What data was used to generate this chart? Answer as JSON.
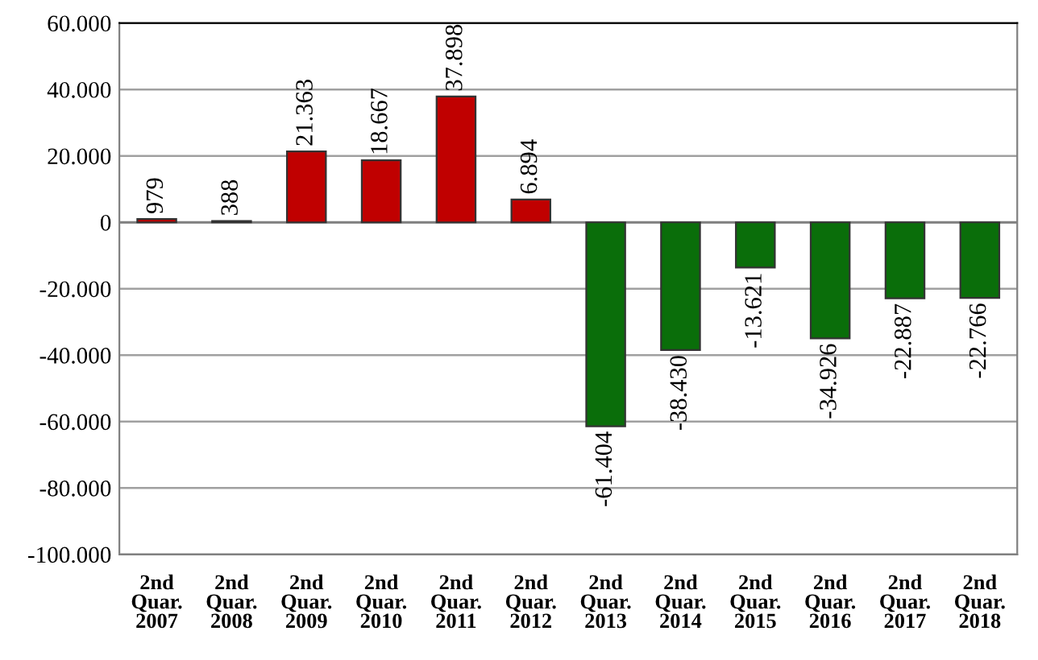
{
  "chart_data": {
    "type": "bar",
    "categories": [
      "2nd\nQuar.\n2007",
      "2nd\nQuar.\n2008",
      "2nd\nQuar.\n2009",
      "2nd\nQuar.\n2010",
      "2nd\nQuar.\n2011",
      "2nd\nQuar.\n2012",
      "2nd\nQuar.\n2013",
      "2nd\nQuar.\n2014",
      "2nd\nQuar.\n2015",
      "2nd\nQuar.\n2016",
      "2nd\nQuar.\n2017",
      "2nd\nQuar.\n2018"
    ],
    "values": [
      979,
      388,
      21363,
      18667,
      37898,
      6894,
      -61404,
      -38430,
      -13621,
      -34926,
      -22887,
      -22766
    ],
    "value_labels": [
      "979",
      "388",
      "21.363",
      "18.667",
      "37.898",
      "6.894",
      "-61.404",
      "-38.430",
      "-13.621",
      "-34.926",
      "-22.887",
      "-22.766"
    ],
    "colors": [
      "#c00000",
      "#c00000",
      "#c00000",
      "#c00000",
      "#c00000",
      "#c00000",
      "#0a6e0a",
      "#0a6e0a",
      "#0a6e0a",
      "#0a6e0a",
      "#0a6e0a",
      "#0a6e0a"
    ],
    "ylim": [
      -100000,
      60000
    ],
    "yticks": [
      {
        "value": -100000,
        "label": "-100.000"
      },
      {
        "value": -80000,
        "label": "-80.000"
      },
      {
        "value": -60000,
        "label": "-60.000"
      },
      {
        "value": -40000,
        "label": "-40.000"
      },
      {
        "value": -20000,
        "label": "-20.000"
      },
      0,
      {
        "value": 20000,
        "label": "20.000"
      },
      {
        "value": 40000,
        "label": "40.000"
      },
      {
        "value": 60000,
        "label": "60.000"
      }
    ],
    "grid": "y"
  }
}
